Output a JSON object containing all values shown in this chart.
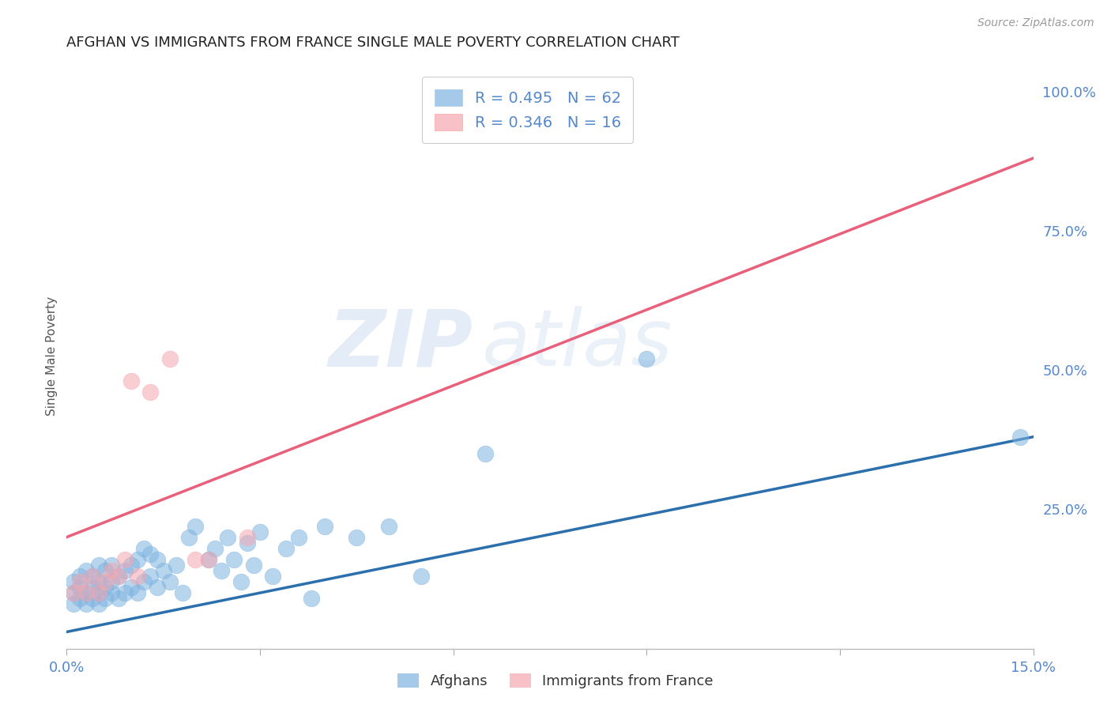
{
  "title": "AFGHAN VS IMMIGRANTS FROM FRANCE SINGLE MALE POVERTY CORRELATION CHART",
  "source": "Source: ZipAtlas.com",
  "ylabel_label": "Single Male Poverty",
  "xlim": [
    0.0,
    0.15
  ],
  "ylim": [
    0.0,
    1.05
  ],
  "xticks": [
    0.0,
    0.03,
    0.06,
    0.09,
    0.12,
    0.15
  ],
  "xticklabels": [
    "0.0%",
    "",
    "",
    "",
    "",
    "15.0%"
  ],
  "yticks_right": [
    0.0,
    0.25,
    0.5,
    0.75,
    1.0
  ],
  "yticklabels_right": [
    "",
    "25.0%",
    "50.0%",
    "75.0%",
    "100.0%"
  ],
  "blue_color": "#7fb3e0",
  "pink_color": "#f4a7b0",
  "blue_line_color": "#2c6fad",
  "pink_line_color": "#e8607a",
  "watermark_text": "ZIPatlas",
  "legend_label_blue": "R = 0.495   N = 62",
  "legend_label_pink": "R = 0.346   N = 16",
  "blue_scatter_x": [
    0.001,
    0.001,
    0.001,
    0.002,
    0.002,
    0.002,
    0.003,
    0.003,
    0.003,
    0.004,
    0.004,
    0.004,
    0.005,
    0.005,
    0.005,
    0.005,
    0.006,
    0.006,
    0.006,
    0.007,
    0.007,
    0.007,
    0.008,
    0.008,
    0.009,
    0.009,
    0.01,
    0.01,
    0.011,
    0.011,
    0.012,
    0.012,
    0.013,
    0.013,
    0.014,
    0.014,
    0.015,
    0.016,
    0.017,
    0.018,
    0.019,
    0.02,
    0.022,
    0.023,
    0.024,
    0.025,
    0.026,
    0.027,
    0.028,
    0.029,
    0.03,
    0.032,
    0.034,
    0.036,
    0.038,
    0.04,
    0.045,
    0.05,
    0.055,
    0.065,
    0.09,
    0.148
  ],
  "blue_scatter_y": [
    0.08,
    0.1,
    0.12,
    0.09,
    0.11,
    0.13,
    0.08,
    0.1,
    0.14,
    0.09,
    0.11,
    0.13,
    0.08,
    0.1,
    0.12,
    0.15,
    0.09,
    0.11,
    0.14,
    0.1,
    0.12,
    0.15,
    0.09,
    0.13,
    0.1,
    0.14,
    0.11,
    0.15,
    0.1,
    0.16,
    0.12,
    0.18,
    0.13,
    0.17,
    0.11,
    0.16,
    0.14,
    0.12,
    0.15,
    0.1,
    0.2,
    0.22,
    0.16,
    0.18,
    0.14,
    0.2,
    0.16,
    0.12,
    0.19,
    0.15,
    0.21,
    0.13,
    0.18,
    0.2,
    0.09,
    0.22,
    0.2,
    0.22,
    0.13,
    0.35,
    0.52,
    0.38
  ],
  "pink_scatter_x": [
    0.001,
    0.002,
    0.003,
    0.004,
    0.005,
    0.006,
    0.007,
    0.008,
    0.009,
    0.01,
    0.011,
    0.013,
    0.016,
    0.02,
    0.022,
    0.028
  ],
  "pink_scatter_y": [
    0.1,
    0.12,
    0.1,
    0.13,
    0.1,
    0.12,
    0.14,
    0.13,
    0.16,
    0.48,
    0.13,
    0.46,
    0.52,
    0.16,
    0.16,
    0.2
  ],
  "blue_line_x": [
    0.0,
    0.15
  ],
  "blue_line_y": [
    0.03,
    0.38
  ],
  "pink_line_x": [
    0.0,
    0.15
  ],
  "pink_line_y": [
    0.2,
    0.88
  ],
  "grid_color": "#d8d8d8",
  "bg_color": "#ffffff",
  "title_color": "#222222",
  "tick_label_color": "#5588cc"
}
